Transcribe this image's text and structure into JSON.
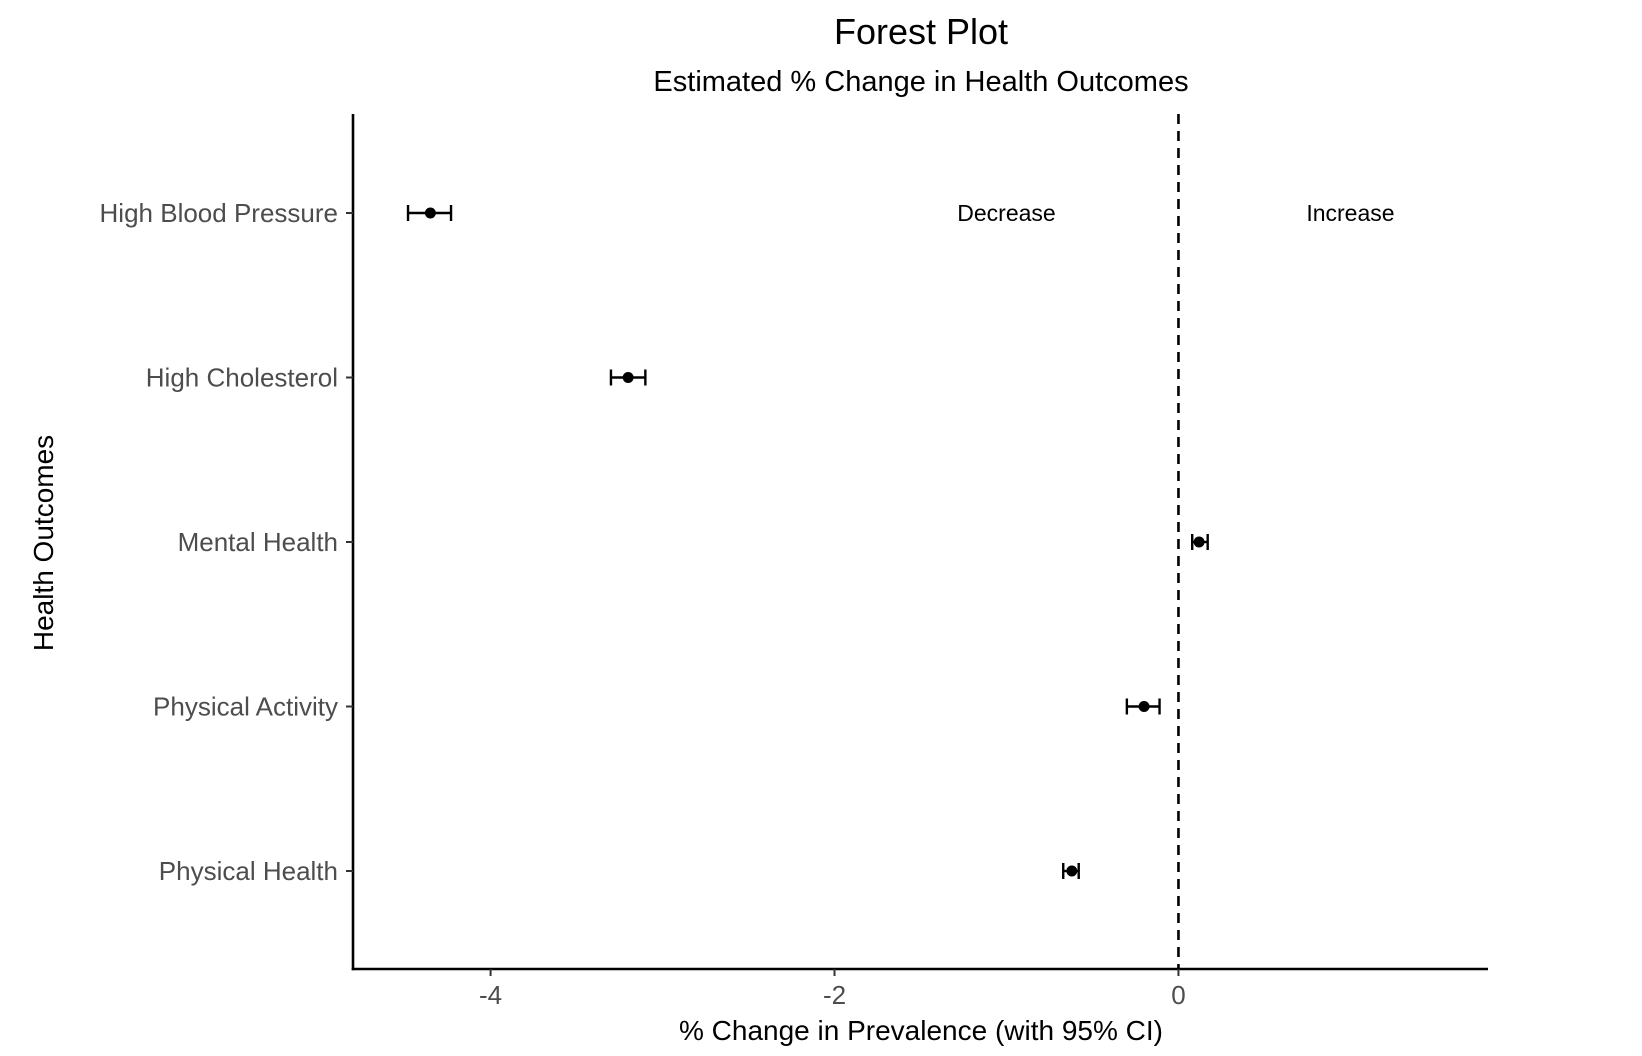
{
  "chart_data": {
    "type": "forest",
    "title": "Forest Plot",
    "subtitle": "Estimated % Change in Health Outcomes",
    "xlabel": "% Change in Prevalence (with 95% CI)",
    "ylabel": "Health Outcomes",
    "xlim": [
      -4.8,
      1.8
    ],
    "x_ticks": [
      -4,
      -2,
      0
    ],
    "x_tick_labels": [
      "-4",
      "-2",
      "0"
    ],
    "reference_line": 0,
    "grid": false,
    "categories": [
      "High Blood Pressure",
      "High Cholesterol",
      "Mental Health",
      "Physical Activity",
      "Physical Health"
    ],
    "estimates": [
      -4.35,
      -3.2,
      0.12,
      -0.2,
      -0.62
    ],
    "ci_lower": [
      -4.48,
      -3.3,
      0.08,
      -0.3,
      -0.67
    ],
    "ci_upper": [
      -4.23,
      -3.1,
      0.17,
      -0.11,
      -0.58
    ],
    "annotations": [
      {
        "text": "Decrease",
        "x": -1.0,
        "category": "High Blood Pressure"
      },
      {
        "text": "Increase",
        "x": 1.0,
        "category": "High Blood Pressure"
      }
    ]
  }
}
